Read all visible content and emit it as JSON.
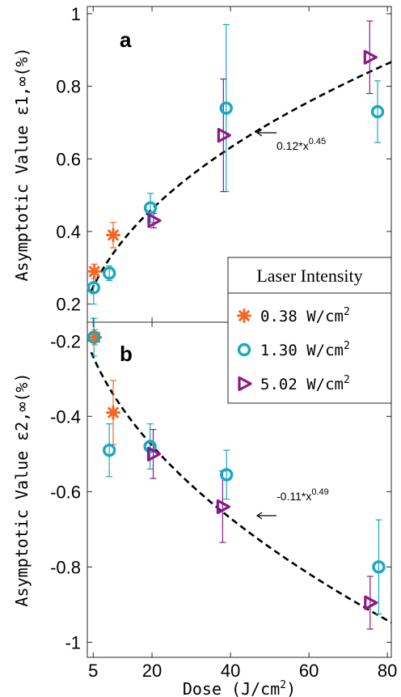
{
  "chart_data": {
    "type": "scatter",
    "xlabel": "Dose (J/cm²)",
    "xticks": [
      5,
      20,
      40,
      60,
      80
    ],
    "xlim": [
      3.5,
      81
    ],
    "legend": {
      "title": "Laser Intensity",
      "placement": "right-middle",
      "entries": [
        "0.38 W/cm²",
        "1.30 W/cm²",
        "5.02 W/cm²"
      ]
    },
    "colors": {
      "0.38": "#F26722",
      "1.30": "#18A9C1",
      "5.02": "#8B1A89",
      "fit": "#000000"
    },
    "panels": [
      {
        "label": "a",
        "ylabel": "Asymptotic Value ε1,∞(%)",
        "ylim": [
          0.15,
          1.02
        ],
        "yticks": [
          0.2,
          0.4,
          0.6,
          0.8,
          1
        ],
        "ytick_labels": [
          "0.2",
          "0.4",
          "0.6",
          "0.8",
          "1"
        ],
        "fit": {
          "label": "0.12*x^0.45",
          "a": 0.12,
          "b": 0.45
        },
        "series": [
          {
            "key": "0.38",
            "marker": "asterisk",
            "points": [
              {
                "x": 5.3,
                "y": 0.29,
                "err": 0.02
              },
              {
                "x": 10.1,
                "y": 0.39,
                "err": 0.035
              }
            ]
          },
          {
            "key": "1.30",
            "marker": "circle",
            "points": [
              {
                "x": 5.1,
                "y": 0.245,
                "err": 0.045
              },
              {
                "x": 9.1,
                "y": 0.285,
                "err": 0.02
              },
              {
                "x": 19.6,
                "y": 0.465,
                "err": 0.04
              },
              {
                "x": 38.9,
                "y": 0.74,
                "err": 0.23
              },
              {
                "x": 77.5,
                "y": 0.73,
                "err": 0.085
              }
            ]
          },
          {
            "key": "5.02",
            "marker": "triangle",
            "points": [
              {
                "x": 20.4,
                "y": 0.43,
                "err": 0.02
              },
              {
                "x": 38.2,
                "y": 0.665,
                "err": 0.155
              },
              {
                "x": 75.5,
                "y": 0.88,
                "err": 0.1
              }
            ]
          }
        ]
      },
      {
        "label": "b",
        "ylabel": "Asymptotic Value ε2,∞(%)",
        "ylim": [
          -1.04,
          -0.15
        ],
        "yticks": [
          -0.2,
          -0.4,
          -0.6,
          -0.8,
          -1
        ],
        "ytick_labels": [
          "-0.2",
          "-0.4",
          "-0.6",
          "-0.8",
          "-1"
        ],
        "fit": {
          "label": "-0.11*x^0.49",
          "a": -0.11,
          "b": 0.49
        },
        "series": [
          {
            "key": "0.38",
            "marker": "asterisk",
            "points": [
              {
                "x": 5.4,
                "y": -0.19,
                "err": 0.02
              },
              {
                "x": 10.1,
                "y": -0.39,
                "err": 0.085
              }
            ]
          },
          {
            "key": "1.30",
            "marker": "circle",
            "points": [
              {
                "x": 5.2,
                "y": -0.19,
                "err": 0.05
              },
              {
                "x": 9.1,
                "y": -0.49,
                "err": 0.07
              },
              {
                "x": 19.5,
                "y": -0.48,
                "err": 0.06
              },
              {
                "x": 39.0,
                "y": -0.555,
                "err": 0.065
              },
              {
                "x": 77.8,
                "y": -0.8,
                "err": 0.125
              }
            ]
          },
          {
            "key": "5.02",
            "marker": "triangle",
            "points": [
              {
                "x": 20.3,
                "y": -0.5,
                "err": 0.065
              },
              {
                "x": 38.0,
                "y": -0.64,
                "err": 0.095
              },
              {
                "x": 75.6,
                "y": -0.895,
                "err": 0.07
              }
            ]
          }
        ]
      }
    ]
  }
}
